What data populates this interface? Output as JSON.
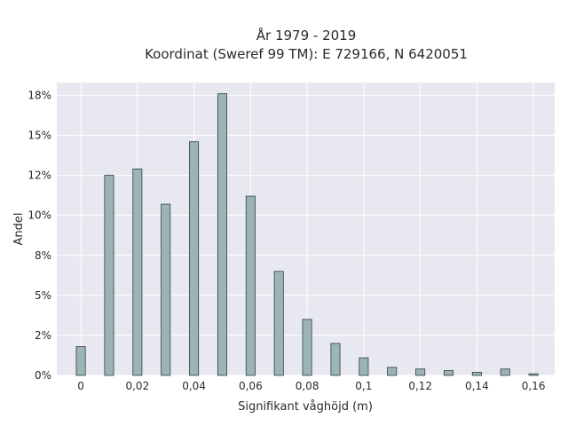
{
  "chart_data": {
    "type": "bar",
    "title_lines": [
      "År 1979 - 2019",
      "Koordinat (Sweref 99 TM): E 729166, N 6420051"
    ],
    "xlabel": "Signifikant våghöjd (m)",
    "ylabel": "Andel",
    "x": [
      0,
      0.01,
      0.02,
      0.03,
      0.04,
      0.05,
      0.06,
      0.07,
      0.08,
      0.09,
      0.1,
      0.11,
      0.12,
      0.13,
      0.14,
      0.15,
      0.16
    ],
    "values": [
      1.8,
      12.5,
      12.9,
      10.7,
      14.6,
      17.6,
      11.2,
      6.5,
      3.5,
      2.0,
      1.1,
      0.5,
      0.4,
      0.3,
      0.2,
      0.4,
      0.1
    ],
    "xlim": [
      -0.0085,
      0.1675
    ],
    "ylim": [
      0,
      18.3
    ],
    "xticks": [
      0,
      0.02,
      0.04,
      0.06,
      0.08,
      0.1,
      0.12,
      0.14,
      0.16
    ],
    "xtick_labels": [
      "0",
      "0,02",
      "0,04",
      "0,06",
      "0,08",
      "0,1",
      "0,12",
      "0,14",
      "0,16"
    ],
    "yticks": [
      0,
      2.5,
      5,
      7.5,
      10,
      12.5,
      15,
      17.5
    ],
    "ytick_labels": [
      "0%",
      "2%",
      "5%",
      "8%",
      "10%",
      "12%",
      "15%",
      "18%"
    ],
    "grid": true,
    "colors": {
      "bar": "#9db4b6",
      "bar_edge": "#2f3f40",
      "plot_bg": "#e8e8f0",
      "grid": "#ffffff"
    }
  }
}
